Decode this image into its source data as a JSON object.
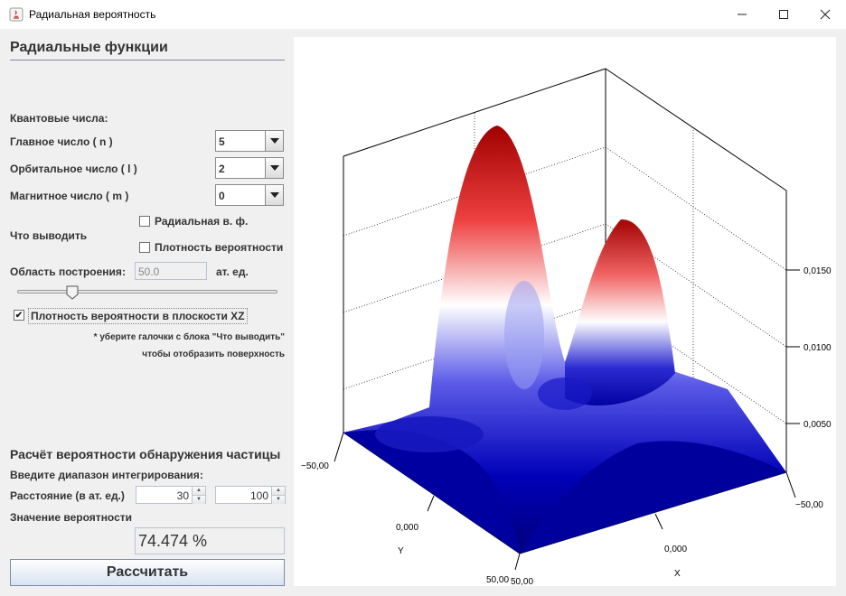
{
  "window": {
    "title": "Радиальная вероятность"
  },
  "left_panel": {
    "heading": "Радиальные функции",
    "quantum_label": "Квантовые числа:",
    "principal": {
      "label": "Главное число ( n )",
      "value": "5"
    },
    "orbital": {
      "label": "Орбитальное число ( l )",
      "value": "2"
    },
    "magnetic": {
      "label": "Магнитное число ( m )",
      "value": "0"
    },
    "output_label": "Что выводить",
    "checkbox_radial": {
      "label": "Радиальная в. ф.",
      "checked": false
    },
    "checkbox_density": {
      "label": "Плотность вероятности",
      "checked": false
    },
    "region": {
      "label": "Область построения:",
      "value": "50.0",
      "unit": "ат. ед."
    },
    "slider": {
      "level": 0.23
    },
    "checkbox_xz": {
      "label": "Плотность вероятности в плоскости XZ",
      "checked": true
    },
    "note_line1": "* уберите галочки с блока \"Что выводить\"",
    "note_line2": "чтобы отобразить поверхность",
    "calc_heading": "Расчёт вероятности обнаружения частицы",
    "range_label": "Введите диапазон интегрирования:",
    "distance_label": "Расстояние (в ат. ед.)",
    "from_value": "30",
    "to_value": "100",
    "prob_label": "Значение вероятности",
    "prob_value": "74.474 %",
    "calc_button": "Рассчитать"
  },
  "plot": {
    "z_ticks": [
      "0,0150",
      "0,0100",
      "0,0050"
    ],
    "left_top_label": "−50,00",
    "right_label": "−50,00",
    "y_center_label": "0,000",
    "y_axis": "Y",
    "x_center_label": "0,000",
    "x_axis": "X",
    "bottom_label": "50,00",
    "bottom_label2": "50,00"
  },
  "colors": {
    "peak": "#a00000",
    "mid": "#ffffff",
    "base": "#0000a0"
  }
}
